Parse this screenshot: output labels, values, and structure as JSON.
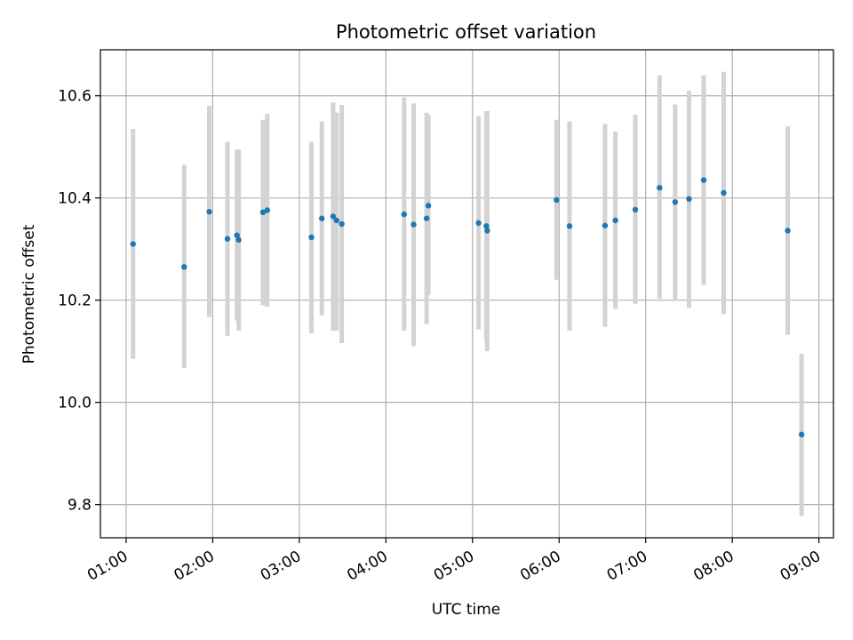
{
  "chart_data": {
    "type": "scatter",
    "title": "Photometric offset variation",
    "xlabel": "UTC time",
    "ylabel": "Photometric offset",
    "x_ticks": [
      "01:00",
      "02:00",
      "03:00",
      "04:00",
      "05:00",
      "06:00",
      "07:00",
      "08:00",
      "09:00"
    ],
    "x_tick_hours": [
      1,
      2,
      3,
      4,
      5,
      6,
      7,
      8,
      9
    ],
    "y_ticks": [
      "9.8",
      "10.0",
      "10.2",
      "10.4",
      "10.6"
    ],
    "y_tick_values": [
      9.8,
      10.0,
      10.2,
      10.4,
      10.6
    ],
    "xlim_hours": [
      0.703,
      9.168
    ],
    "ylim": [
      9.735,
      10.69
    ],
    "grid": true,
    "point_color": "#1f77b4",
    "errorbar_color": "#d3d3d3",
    "points": [
      {
        "time_hours": 1.08,
        "y": 10.31,
        "low": 10.085,
        "high": 10.535
      },
      {
        "time_hours": 1.67,
        "y": 10.265,
        "low": 10.067,
        "high": 10.465
      },
      {
        "time_hours": 1.96,
        "y": 10.373,
        "low": 10.167,
        "high": 10.58
      },
      {
        "time_hours": 2.17,
        "y": 10.32,
        "low": 10.13,
        "high": 10.51
      },
      {
        "time_hours": 2.28,
        "y": 10.327,
        "low": 10.16,
        "high": 10.495
      },
      {
        "time_hours": 2.3,
        "y": 10.318,
        "low": 10.14,
        "high": 10.495
      },
      {
        "time_hours": 2.58,
        "y": 10.372,
        "low": 10.19,
        "high": 10.553
      },
      {
        "time_hours": 2.63,
        "y": 10.376,
        "low": 10.187,
        "high": 10.565
      },
      {
        "time_hours": 3.14,
        "y": 10.323,
        "low": 10.135,
        "high": 10.51
      },
      {
        "time_hours": 3.26,
        "y": 10.36,
        "low": 10.17,
        "high": 10.55
      },
      {
        "time_hours": 3.39,
        "y": 10.364,
        "low": 10.14,
        "high": 10.587
      },
      {
        "time_hours": 3.43,
        "y": 10.356,
        "low": 10.14,
        "high": 10.567
      },
      {
        "time_hours": 3.49,
        "y": 10.349,
        "low": 10.116,
        "high": 10.582
      },
      {
        "time_hours": 4.21,
        "y": 10.368,
        "low": 10.14,
        "high": 10.597
      },
      {
        "time_hours": 4.32,
        "y": 10.348,
        "low": 10.11,
        "high": 10.585
      },
      {
        "time_hours": 4.47,
        "y": 10.36,
        "low": 10.153,
        "high": 10.567
      },
      {
        "time_hours": 4.49,
        "y": 10.385,
        "low": 10.21,
        "high": 10.562
      },
      {
        "time_hours": 5.07,
        "y": 10.351,
        "low": 10.143,
        "high": 10.56
      },
      {
        "time_hours": 5.16,
        "y": 10.345,
        "low": 10.12,
        "high": 10.57
      },
      {
        "time_hours": 5.17,
        "y": 10.336,
        "low": 10.1,
        "high": 10.57
      },
      {
        "time_hours": 5.97,
        "y": 10.396,
        "low": 10.24,
        "high": 10.553
      },
      {
        "time_hours": 6.12,
        "y": 10.345,
        "low": 10.14,
        "high": 10.55
      },
      {
        "time_hours": 6.53,
        "y": 10.346,
        "low": 10.148,
        "high": 10.545
      },
      {
        "time_hours": 6.65,
        "y": 10.356,
        "low": 10.183,
        "high": 10.53
      },
      {
        "time_hours": 6.88,
        "y": 10.377,
        "low": 10.193,
        "high": 10.563
      },
      {
        "time_hours": 7.16,
        "y": 10.42,
        "low": 10.203,
        "high": 10.64
      },
      {
        "time_hours": 7.34,
        "y": 10.392,
        "low": 10.2,
        "high": 10.583
      },
      {
        "time_hours": 7.5,
        "y": 10.398,
        "low": 10.185,
        "high": 10.61
      },
      {
        "time_hours": 7.67,
        "y": 10.435,
        "low": 10.23,
        "high": 10.64
      },
      {
        "time_hours": 7.9,
        "y": 10.41,
        "low": 10.173,
        "high": 10.647
      },
      {
        "time_hours": 8.64,
        "y": 10.336,
        "low": 10.132,
        "high": 10.54
      },
      {
        "time_hours": 8.8,
        "y": 9.937,
        "low": 9.778,
        "high": 10.095
      }
    ]
  }
}
